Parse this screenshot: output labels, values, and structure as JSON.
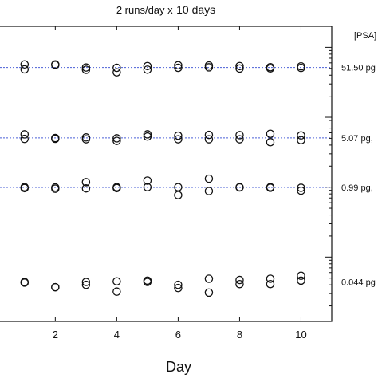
{
  "chart_data": {
    "type": "scatter",
    "title": "2 runs/day x",
    "title_emphasis": "10 days",
    "xlabel": "Day",
    "ylabel": "",
    "y_scale": "log",
    "xlim": [
      0.2,
      11.0
    ],
    "ylim": [
      0.012,
      200
    ],
    "x_ticks": [
      2,
      4,
      6,
      8,
      10
    ],
    "x_tick_labels": [
      "2",
      "4",
      "6",
      "8",
      "10"
    ],
    "grid": false,
    "legend": "none",
    "right_axis": {
      "header": "[PSA]",
      "labels": [
        {
          "text": "51.50 pg",
          "value": 51.5
        },
        {
          "text": "5.07 pg,",
          "value": 5.07
        },
        {
          "text": "0.99 pg,",
          "value": 0.99
        },
        {
          "text": "0.044 pg",
          "value": 0.044
        }
      ]
    },
    "reference_lines": [
      51.5,
      5.07,
      0.99,
      0.044
    ],
    "series": [
      {
        "level": "51.50",
        "x": [
          1,
          1,
          2,
          2,
          3,
          3,
          4,
          4,
          5,
          5,
          6,
          6,
          7,
          7,
          8,
          8,
          9,
          9,
          10,
          10
        ],
        "y": [
          57.0,
          48.5,
          57.0,
          56.0,
          51.5,
          47.8,
          51.0,
          44.0,
          54.0,
          48.0,
          55.5,
          51.0,
          55.0,
          51.8,
          54.0,
          49.8,
          52.0,
          50.0,
          53.5,
          50.8
        ]
      },
      {
        "level": "5.07",
        "x": [
          1,
          1,
          2,
          2,
          3,
          3,
          4,
          4,
          5,
          5,
          6,
          6,
          7,
          7,
          8,
          8,
          9,
          9,
          10,
          10
        ],
        "y": [
          5.7,
          4.9,
          5.05,
          4.92,
          5.15,
          4.85,
          5.0,
          4.6,
          5.7,
          5.3,
          5.45,
          4.85,
          5.6,
          4.85,
          5.55,
          4.85,
          5.8,
          4.4,
          5.5,
          4.7
        ]
      },
      {
        "level": "0.99",
        "x": [
          1,
          1,
          2,
          2,
          3,
          3,
          4,
          4,
          5,
          5,
          6,
          6,
          7,
          7,
          8,
          8,
          9,
          9,
          10,
          10
        ],
        "y": [
          1.0,
          0.97,
          0.99,
          0.95,
          1.18,
          0.96,
          1.0,
          0.97,
          1.24,
          1.0,
          1.0,
          0.77,
          1.32,
          0.88,
          1.0,
          0.99,
          1.0,
          0.98,
          0.98,
          0.89
        ]
      },
      {
        "level": "0.044",
        "x": [
          1,
          1,
          2,
          2,
          3,
          3,
          4,
          4,
          5,
          5,
          6,
          6,
          7,
          7,
          8,
          8,
          9,
          9,
          10,
          10
        ],
        "y": [
          0.044,
          0.043,
          0.037,
          0.037,
          0.044,
          0.04,
          0.045,
          0.032,
          0.046,
          0.044,
          0.04,
          0.036,
          0.049,
          0.031,
          0.047,
          0.041,
          0.049,
          0.041,
          0.054,
          0.046
        ]
      }
    ]
  }
}
